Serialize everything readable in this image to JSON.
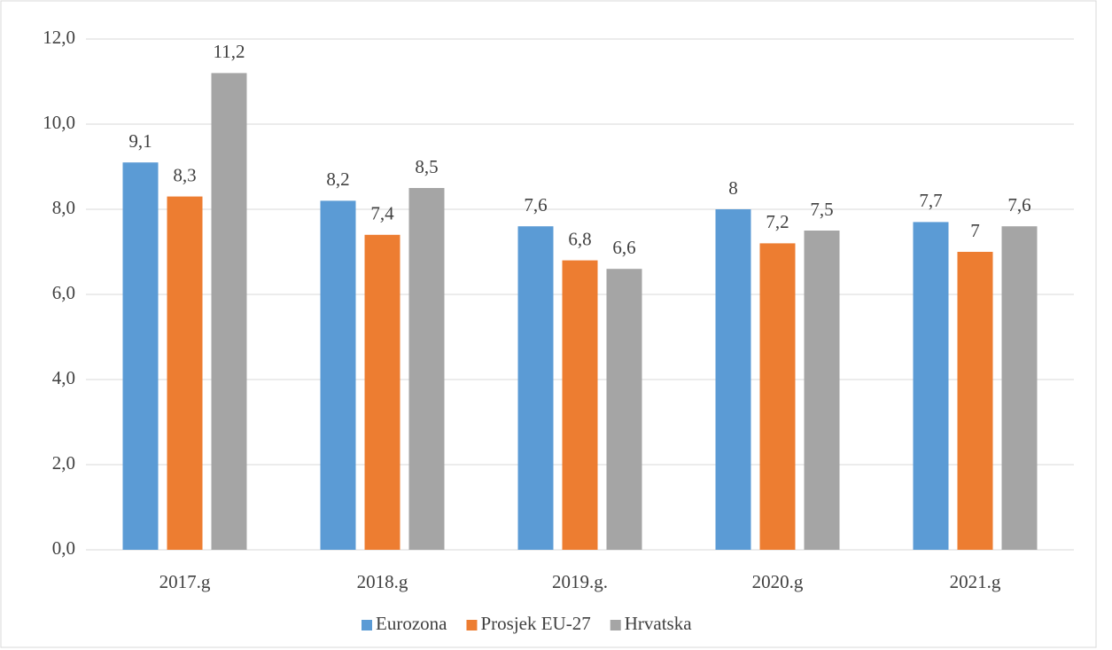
{
  "chart_data": {
    "type": "bar",
    "categories": [
      "2017.g",
      "2018.g",
      "2019.g.",
      "2020.g",
      "2021.g"
    ],
    "series": [
      {
        "name": "Eurozona",
        "color": "#5b9bd5",
        "values": [
          9.1,
          8.2,
          7.6,
          8,
          7.7
        ],
        "value_labels": [
          "9,1",
          "8,2",
          "7,6",
          "8",
          "7,7"
        ]
      },
      {
        "name": "Prosjek EU-27",
        "color": "#ed7d31",
        "values": [
          8.3,
          7.4,
          6.8,
          7.2,
          7
        ],
        "value_labels": [
          "8,3",
          "7,4",
          "6,8",
          "7,2",
          "7"
        ]
      },
      {
        "name": "Hrvatska",
        "color": "#a5a5a5",
        "values": [
          11.2,
          8.5,
          6.6,
          7.5,
          7.6
        ],
        "value_labels": [
          "11,2",
          "8,5",
          "6,6",
          "7,5",
          "7,6"
        ]
      }
    ],
    "ylim": [
      0,
      12
    ],
    "yticks": [
      {
        "value": 0,
        "label": "0,0"
      },
      {
        "value": 2,
        "label": "2,0"
      },
      {
        "value": 4,
        "label": "4,0"
      },
      {
        "value": 6,
        "label": "6,0"
      },
      {
        "value": 8,
        "label": "8,0"
      },
      {
        "value": 10,
        "label": "10,0"
      },
      {
        "value": 12,
        "label": "12,0"
      }
    ],
    "grid": true,
    "legend": "bottom"
  }
}
